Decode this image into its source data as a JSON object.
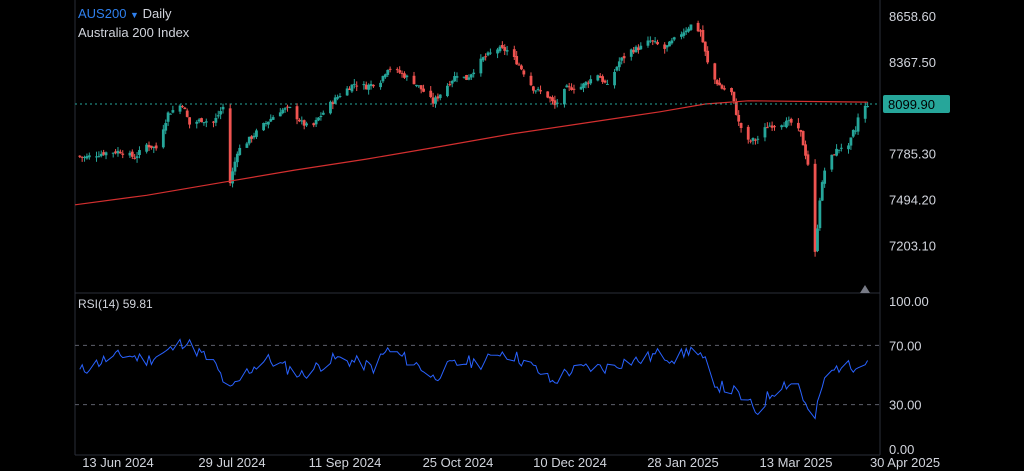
{
  "header": {
    "symbol": "AUS200",
    "timeframe": "Daily",
    "instrument_name": "Australia 200 Index",
    "rsi_label": "RSI(14)",
    "rsi_value": "59.81"
  },
  "colors": {
    "up": "#26a69a",
    "down": "#ef5350",
    "ma": "#d32f2f",
    "rsi_line": "#2962ff",
    "price_tag": "#26a69a",
    "background": "#000000",
    "grid": "#2a2e39"
  },
  "chart_data": [
    {
      "type": "candlestick",
      "title": "",
      "price_axis_ticks": [
        "8658.60",
        "8367.50",
        "7785.30",
        "7494.20",
        "7203.10"
      ],
      "price_axis_values": [
        8658.6,
        8367.5,
        7785.3,
        7494.2,
        7203.1
      ],
      "ylim": [
        6900,
        8760
      ],
      "last_price": 8099.9,
      "last_price_label": "8099.90",
      "x_axis_ticks": [
        "13 Jun 2024",
        "29 Jul 2024",
        "11 Sep 2024",
        "25 Oct 2024",
        "10 Dec 2024",
        "28 Jan 2025",
        "13 Mar 2025",
        "30 Apr 2025"
      ],
      "date_start": "2024-06-01",
      "date_end": "2025-04-30",
      "series": [
        {
          "name": "",
          "kind": "close_path",
          "points": [
            [
              "2024-06-01",
              7770
            ],
            [
              "2024-06-05",
              7760
            ],
            [
              "2024-06-13",
              7790
            ],
            [
              "2024-06-20",
              7800
            ],
            [
              "2024-06-26",
              7760
            ],
            [
              "2024-07-01",
              7840
            ],
            [
              "2024-07-05",
              7820
            ],
            [
              "2024-07-10",
              8040
            ],
            [
              "2024-07-16",
              8100
            ],
            [
              "2024-07-19",
              7970
            ],
            [
              "2024-07-24",
              8000
            ],
            [
              "2024-07-29",
              7980
            ],
            [
              "2024-08-02",
              8080
            ],
            [
              "2024-08-05",
              7600
            ],
            [
              "2024-08-08",
              7800
            ],
            [
              "2024-08-14",
              7890
            ],
            [
              "2024-08-20",
              7980
            ],
            [
              "2024-08-26",
              8060
            ],
            [
              "2024-08-30",
              8070
            ],
            [
              "2024-09-04",
              7980
            ],
            [
              "2024-09-08",
              7940
            ],
            [
              "2024-09-11",
              8010
            ],
            [
              "2024-09-16",
              8100
            ],
            [
              "2024-09-20",
              8160
            ],
            [
              "2024-09-26",
              8230
            ],
            [
              "2024-10-01",
              8210
            ],
            [
              "2024-10-07",
              8250
            ],
            [
              "2024-10-10",
              8330
            ],
            [
              "2024-10-15",
              8300
            ],
            [
              "2024-10-21",
              8240
            ],
            [
              "2024-10-25",
              8180
            ],
            [
              "2024-10-29",
              8110
            ],
            [
              "2024-11-04",
              8220
            ],
            [
              "2024-11-08",
              8290
            ],
            [
              "2024-11-12",
              8260
            ],
            [
              "2024-11-19",
              8390
            ],
            [
              "2024-11-25",
              8450
            ],
            [
              "2024-11-29",
              8440
            ],
            [
              "2024-12-04",
              8350
            ],
            [
              "2024-12-10",
              8200
            ],
            [
              "2024-12-16",
              8150
            ],
            [
              "2024-12-19",
              8090
            ],
            [
              "2024-12-24",
              8200
            ],
            [
              "2024-12-30",
              8210
            ],
            [
              "2025-01-06",
              8290
            ],
            [
              "2025-01-10",
              8210
            ],
            [
              "2025-01-15",
              8370
            ],
            [
              "2025-01-20",
              8440
            ],
            [
              "2025-01-24",
              8460
            ],
            [
              "2025-01-28",
              8500
            ],
            [
              "2025-02-03",
              8450
            ],
            [
              "2025-02-10",
              8550
            ],
            [
              "2025-02-14",
              8600
            ],
            [
              "2025-02-18",
              8560
            ],
            [
              "2025-02-22",
              8290
            ],
            [
              "2025-02-27",
              8200
            ],
            [
              "2025-03-03",
              8170
            ],
            [
              "2025-03-06",
              7980
            ],
            [
              "2025-03-10",
              7860
            ],
            [
              "2025-03-14",
              7880
            ],
            [
              "2025-03-18",
              7960
            ],
            [
              "2025-03-24",
              7980
            ],
            [
              "2025-03-28",
              7980
            ],
            [
              "2025-04-01",
              7910
            ],
            [
              "2025-04-04",
              7720
            ],
            [
              "2025-04-07",
              7150
            ],
            [
              "2025-04-09",
              7500
            ],
            [
              "2025-04-11",
              7680
            ],
            [
              "2025-04-15",
              7790
            ],
            [
              "2025-04-18",
              7830
            ],
            [
              "2025-04-21",
              7820
            ],
            [
              "2025-04-23",
              7920
            ],
            [
              "2025-04-24",
              7930
            ],
            [
              "2025-04-25",
              8010
            ],
            [
              "2025-04-27",
              8060
            ],
            [
              "2025-04-29",
              8099.9
            ]
          ]
        },
        {
          "name": "",
          "kind": "moving_average",
          "points": [
            [
              "2024-06-01",
              7460
            ],
            [
              "2024-07-01",
              7520
            ],
            [
              "2024-08-01",
              7600
            ],
            [
              "2024-09-01",
              7680
            ],
            [
              "2024-10-01",
              7750
            ],
            [
              "2024-11-01",
              7830
            ],
            [
              "2024-12-01",
              7910
            ],
            [
              "2025-01-01",
              7980
            ],
            [
              "2025-02-01",
              8050
            ],
            [
              "2025-02-20",
              8100
            ],
            [
              "2025-03-10",
              8120
            ],
            [
              "2025-04-10",
              8115
            ],
            [
              "2025-04-29",
              8112
            ]
          ]
        }
      ]
    },
    {
      "type": "line",
      "title": "",
      "y_axis_ticks": [
        "100.00",
        "70.00",
        "30.00",
        "0.00"
      ],
      "y_axis_values": [
        100,
        70,
        30,
        0
      ],
      "ylim": [
        -4,
        104
      ],
      "dashed_levels": [
        70,
        30
      ],
      "last_value": 59.81,
      "series": [
        {
          "name": "RSI(14)",
          "points": [
            [
              "2024-06-01",
              51
            ],
            [
              "2024-06-13",
              60
            ],
            [
              "2024-06-22",
              64
            ],
            [
              "2024-07-01",
              60
            ],
            [
              "2024-07-10",
              66
            ],
            [
              "2024-07-17",
              73
            ],
            [
              "2024-07-24",
              64
            ],
            [
              "2024-07-29",
              58
            ],
            [
              "2024-08-05",
              39
            ],
            [
              "2024-08-12",
              52
            ],
            [
              "2024-08-20",
              61
            ],
            [
              "2024-08-27",
              56
            ],
            [
              "2024-09-04",
              50
            ],
            [
              "2024-09-11",
              56
            ],
            [
              "2024-09-18",
              61
            ],
            [
              "2024-09-26",
              59
            ],
            [
              "2024-10-04",
              55
            ],
            [
              "2024-10-10",
              67
            ],
            [
              "2024-10-15",
              63
            ],
            [
              "2024-10-21",
              58
            ],
            [
              "2024-10-25",
              54
            ],
            [
              "2024-10-29",
              48
            ],
            [
              "2024-11-05",
              56
            ],
            [
              "2024-11-12",
              59
            ],
            [
              "2024-11-19",
              58
            ],
            [
              "2024-11-26",
              66
            ],
            [
              "2024-12-03",
              62
            ],
            [
              "2024-12-10",
              55
            ],
            [
              "2024-12-18",
              45
            ],
            [
              "2024-12-24",
              52
            ],
            [
              "2025-01-02",
              55
            ],
            [
              "2025-01-10",
              55
            ],
            [
              "2025-01-17",
              59
            ],
            [
              "2025-01-24",
              60
            ],
            [
              "2025-01-31",
              64
            ],
            [
              "2025-02-08",
              61
            ],
            [
              "2025-02-14",
              68
            ],
            [
              "2025-02-20",
              58
            ],
            [
              "2025-02-25",
              43
            ],
            [
              "2025-03-04",
              39
            ],
            [
              "2025-03-10",
              31
            ],
            [
              "2025-03-14",
              25
            ],
            [
              "2025-03-18",
              35
            ],
            [
              "2025-03-24",
              44
            ],
            [
              "2025-03-31",
              44
            ],
            [
              "2025-04-04",
              25
            ],
            [
              "2025-04-07",
              21
            ],
            [
              "2025-04-10",
              43
            ],
            [
              "2025-04-14",
              52
            ],
            [
              "2025-04-18",
              57
            ],
            [
              "2025-04-22",
              55
            ],
            [
              "2025-04-25",
              59
            ],
            [
              "2025-04-29",
              59.81
            ]
          ]
        }
      ]
    }
  ]
}
